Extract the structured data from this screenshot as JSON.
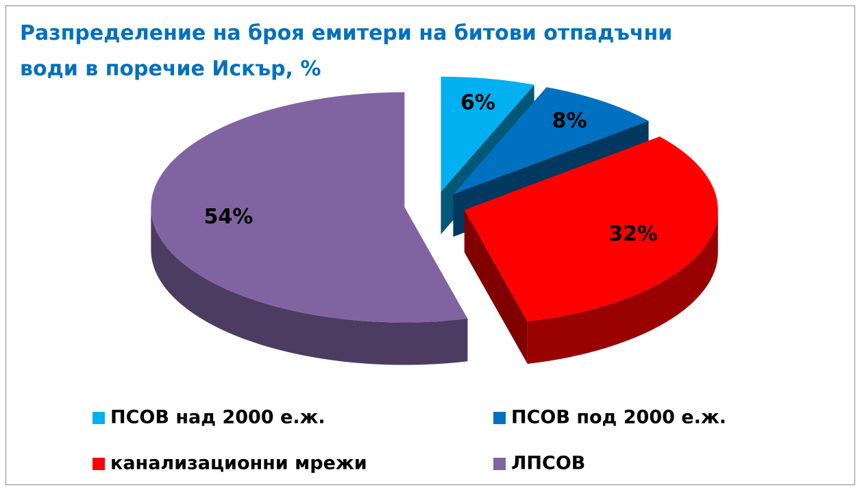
{
  "chart_data": {
    "type": "pie",
    "title": "Разпределение на броя емитери на битови отпадъчни води в поречие Искър, %",
    "categories": [
      "ПСОВ над 2000 е.ж.",
      "ПСОВ под 2000 е.ж.",
      "канализационни мрежи",
      "ЛПСОВ"
    ],
    "values": [
      6,
      8,
      32,
      54
    ],
    "value_labels": [
      "6%",
      "8%",
      "32%",
      "54%"
    ],
    "colors": [
      "#00b0f0",
      "#0070c0",
      "#ff0000",
      "#8064a2"
    ]
  }
}
